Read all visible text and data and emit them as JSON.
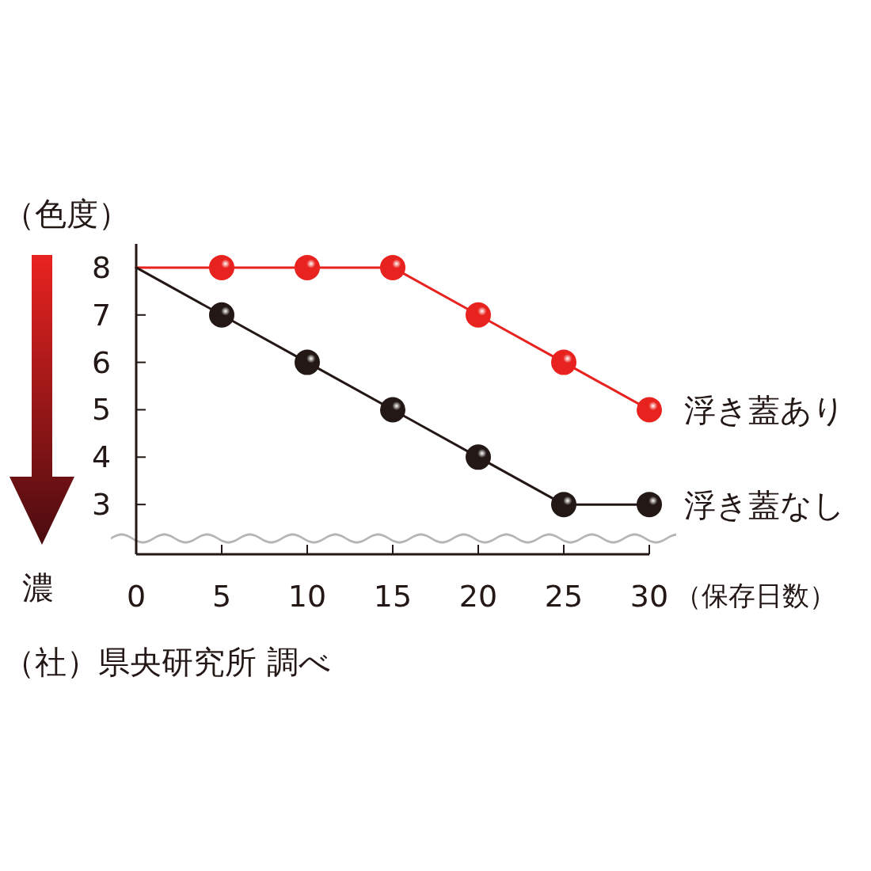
{
  "chart_data": {
    "type": "line",
    "ylabel": "（色度）",
    "xlabel": "（保存日数）",
    "x": [
      0,
      5,
      10,
      15,
      20,
      25,
      30
    ],
    "series": [
      {
        "name": "浮き蓋あり",
        "color": "#e8231f",
        "values": [
          8,
          8,
          8,
          8,
          7,
          6,
          5
        ]
      },
      {
        "name": "浮き蓋なし",
        "color": "#231815",
        "values": [
          8,
          7,
          6,
          5,
          4,
          3,
          3
        ]
      }
    ],
    "xlim": [
      0,
      30
    ],
    "ylim": [
      1.95,
      8.5
    ],
    "xticks": [
      0,
      5,
      10,
      15,
      20,
      25,
      30
    ],
    "yticks": [
      3,
      4,
      5,
      6,
      7,
      8
    ],
    "marker": "circle",
    "line_style": "solid",
    "grid": false,
    "legend": false,
    "annotations": [
      "濃",
      "（社）県央研究所 調べ"
    ]
  }
}
